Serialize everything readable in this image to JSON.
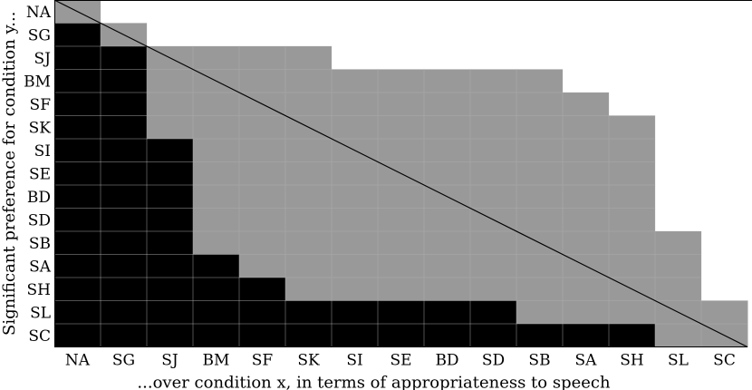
{
  "chart_data": {
    "type": "heatmap",
    "conditions": [
      "NA",
      "SG",
      "SJ",
      "BM",
      "SF",
      "SK",
      "SI",
      "SE",
      "BD",
      "SD",
      "SB",
      "SA",
      "SH",
      "SL",
      "SC"
    ],
    "xlabel": "...over condition x, in terms of appropriateness to speech",
    "ylabel": "Significant preference for condition y...",
    "legend": "none",
    "grid": true,
    "cell_states": [
      "significant",
      "not significant",
      "blank"
    ],
    "colors": {
      "significant": "#000000",
      "not_significant": "#999999",
      "blank": "#ffffff",
      "grid_line": "#b0b0b0",
      "diagonal": "#000000"
    },
    "matrix": [
      [
        1,
        2,
        2,
        2,
        2,
        2,
        2,
        2,
        2,
        2,
        2,
        2,
        2,
        2,
        2
      ],
      [
        0,
        1,
        2,
        2,
        2,
        2,
        2,
        2,
        2,
        2,
        2,
        2,
        2,
        2,
        2
      ],
      [
        0,
        0,
        1,
        1,
        1,
        1,
        2,
        2,
        2,
        2,
        2,
        2,
        2,
        2,
        2
      ],
      [
        0,
        0,
        1,
        1,
        1,
        1,
        1,
        1,
        1,
        1,
        1,
        2,
        2,
        2,
        2
      ],
      [
        0,
        0,
        1,
        1,
        1,
        1,
        1,
        1,
        1,
        1,
        1,
        1,
        2,
        2,
        2
      ],
      [
        0,
        0,
        1,
        1,
        1,
        1,
        1,
        1,
        1,
        1,
        1,
        1,
        1,
        2,
        2
      ],
      [
        0,
        0,
        0,
        1,
        1,
        1,
        1,
        1,
        1,
        1,
        1,
        1,
        1,
        2,
        2
      ],
      [
        0,
        0,
        0,
        1,
        1,
        1,
        1,
        1,
        1,
        1,
        1,
        1,
        1,
        2,
        2
      ],
      [
        0,
        0,
        0,
        1,
        1,
        1,
        1,
        1,
        1,
        1,
        1,
        1,
        1,
        2,
        2
      ],
      [
        0,
        0,
        0,
        1,
        1,
        1,
        1,
        1,
        1,
        1,
        1,
        1,
        1,
        2,
        2
      ],
      [
        0,
        0,
        0,
        1,
        1,
        1,
        1,
        1,
        1,
        1,
        1,
        1,
        1,
        1,
        2
      ],
      [
        0,
        0,
        0,
        0,
        1,
        1,
        1,
        1,
        1,
        1,
        1,
        1,
        1,
        1,
        2
      ],
      [
        0,
        0,
        0,
        0,
        0,
        1,
        1,
        1,
        1,
        1,
        1,
        1,
        1,
        1,
        2
      ],
      [
        0,
        0,
        0,
        0,
        0,
        0,
        0,
        0,
        0,
        0,
        1,
        1,
        1,
        1,
        1
      ],
      [
        0,
        0,
        0,
        0,
        0,
        0,
        0,
        0,
        0,
        0,
        0,
        0,
        0,
        1,
        1
      ]
    ]
  }
}
